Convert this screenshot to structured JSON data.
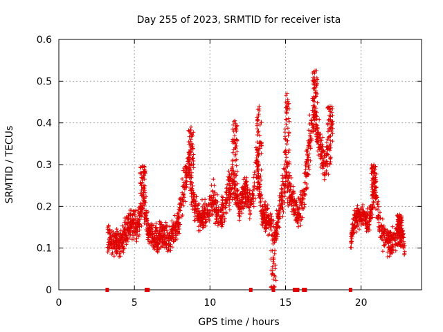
{
  "chart_data": {
    "type": "scatter",
    "title": "Day 255 of 2023, SRMTID for receiver ista",
    "xlabel": "GPS time / hours",
    "ylabel": "SRMTID / TECUs",
    "xlim": [
      0,
      24
    ],
    "ylim": [
      0,
      0.6
    ],
    "xticks": [
      0,
      5,
      10,
      15,
      20
    ],
    "xtick_labels": [
      "0",
      "5",
      "10",
      "15",
      "20"
    ],
    "yticks": [
      0,
      0.1,
      0.2,
      0.3,
      0.4,
      0.5,
      0.6
    ],
    "ytick_labels": [
      "0",
      "0.1",
      "0.2",
      "0.3",
      "0.4",
      "0.5",
      "0.6"
    ],
    "grid": true,
    "marker": "plus",
    "colors": {
      "series": "#e00000",
      "grid": "#a0a0a0",
      "axis": "#000000"
    },
    "zero_markers_x": [
      3.2,
      5.8,
      5.9,
      12.7,
      14.2,
      15.6,
      15.7,
      15.8,
      16.2,
      16.3,
      19.3
    ],
    "envelope": [
      [
        3.2,
        0.12,
        0.06
      ],
      [
        3.5,
        0.12,
        0.05
      ],
      [
        4.0,
        0.11,
        0.05
      ],
      [
        4.4,
        0.14,
        0.06
      ],
      [
        4.8,
        0.16,
        0.05
      ],
      [
        5.2,
        0.15,
        0.05
      ],
      [
        5.6,
        0.22,
        0.07
      ],
      [
        5.9,
        0.15,
        0.05
      ],
      [
        6.3,
        0.12,
        0.05
      ],
      [
        6.8,
        0.13,
        0.05
      ],
      [
        7.3,
        0.12,
        0.05
      ],
      [
        7.8,
        0.15,
        0.05
      ],
      [
        8.2,
        0.23,
        0.07
      ],
      [
        8.6,
        0.3,
        0.07
      ],
      [
        8.9,
        0.21,
        0.06
      ],
      [
        9.3,
        0.17,
        0.05
      ],
      [
        9.8,
        0.18,
        0.05
      ],
      [
        10.2,
        0.22,
        0.06
      ],
      [
        10.6,
        0.17,
        0.05
      ],
      [
        11.0,
        0.2,
        0.06
      ],
      [
        11.5,
        0.27,
        0.08
      ],
      [
        11.9,
        0.19,
        0.05
      ],
      [
        12.3,
        0.24,
        0.06
      ],
      [
        12.7,
        0.2,
        0.05
      ],
      [
        13.1,
        0.3,
        0.09
      ],
      [
        13.5,
        0.18,
        0.05
      ],
      [
        14.0,
        0.16,
        0.05
      ],
      [
        14.3,
        0.12,
        0.06
      ],
      [
        14.6,
        0.18,
        0.06
      ],
      [
        15.0,
        0.28,
        0.09
      ],
      [
        15.4,
        0.22,
        0.07
      ],
      [
        15.8,
        0.18,
        0.05
      ],
      [
        16.2,
        0.22,
        0.07
      ],
      [
        16.6,
        0.35,
        0.09
      ],
      [
        16.9,
        0.42,
        0.08
      ],
      [
        17.2,
        0.36,
        0.07
      ],
      [
        17.6,
        0.3,
        0.07
      ],
      [
        18.0,
        0.34,
        0.07
      ],
      [
        19.3,
        0.11,
        0.03
      ],
      [
        19.6,
        0.17,
        0.05
      ],
      [
        20.1,
        0.18,
        0.05
      ],
      [
        20.5,
        0.16,
        0.04
      ],
      [
        20.9,
        0.24,
        0.07
      ],
      [
        21.3,
        0.14,
        0.05
      ],
      [
        21.7,
        0.12,
        0.05
      ],
      [
        22.1,
        0.11,
        0.05
      ],
      [
        22.5,
        0.14,
        0.05
      ],
      [
        22.9,
        0.1,
        0.04
      ]
    ],
    "peaks": [
      [
        5.55,
        0.297
      ],
      [
        8.75,
        0.39
      ],
      [
        11.65,
        0.405
      ],
      [
        13.25,
        0.44
      ],
      [
        15.1,
        0.47
      ],
      [
        16.95,
        0.525
      ],
      [
        17.95,
        0.44
      ],
      [
        20.85,
        0.3
      ],
      [
        22.55,
        0.18
      ]
    ]
  }
}
